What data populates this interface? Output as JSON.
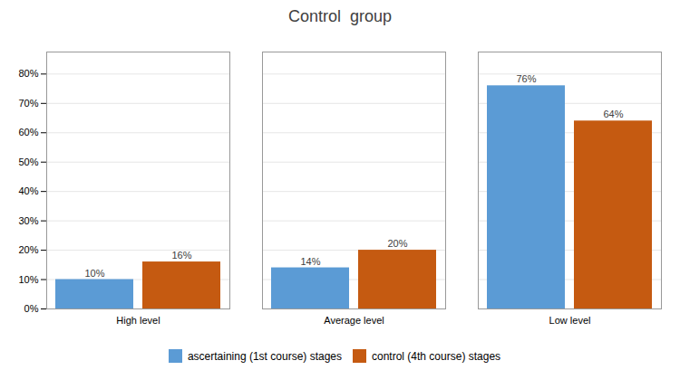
{
  "chart_data": {
    "type": "bar",
    "title": "Control  group",
    "categories": [
      "High level",
      "Average level",
      "Low level"
    ],
    "series": [
      {
        "name": "ascertaining (1st course) stages",
        "color": "#5B9BD5",
        "values": [
          0.1,
          0.14,
          0.76
        ],
        "value_labels": [
          "10%",
          "14%",
          "76%"
        ]
      },
      {
        "name": "control (4th course) stages",
        "color": "#C55A11",
        "values": [
          0.16,
          0.2,
          0.64
        ],
        "value_labels": [
          "16%",
          "20%",
          "64%"
        ]
      }
    ],
    "ylim": [
      0,
      0.875
    ],
    "yticks": [
      {
        "value": 0.0,
        "label": "0%"
      },
      {
        "value": 0.1,
        "label": "10%"
      },
      {
        "value": 0.2,
        "label": "20%"
      },
      {
        "value": 0.3,
        "label": "30%"
      },
      {
        "value": 0.4,
        "label": "40%"
      },
      {
        "value": 0.5,
        "label": "50%"
      },
      {
        "value": 0.6,
        "label": "60%"
      },
      {
        "value": 0.7,
        "label": "70%"
      },
      {
        "value": 0.8,
        "label": "80%"
      }
    ],
    "grid": true,
    "legend": "bottom",
    "data_labels": true
  }
}
